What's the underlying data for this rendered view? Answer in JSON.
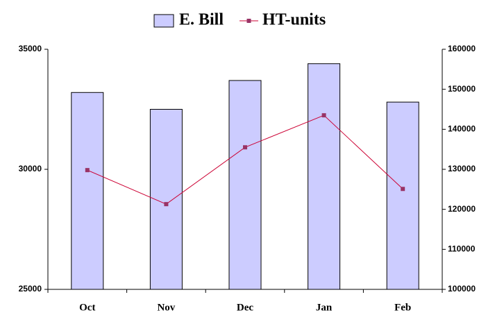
{
  "chart_data": {
    "type": "bar",
    "categories": [
      "Oct",
      "Nov",
      "Dec",
      "Jan",
      "Feb"
    ],
    "series": [
      {
        "name": "E. Bill",
        "type": "bar",
        "color": "#ccccff",
        "values": [
          33200,
          32500,
          33700,
          34400,
          32800
        ]
      },
      {
        "name": "HT-units",
        "type": "line",
        "axis": "y2",
        "color": "#cc0033",
        "marker_color": "#993366",
        "values": [
          129800,
          121300,
          135500,
          143500,
          125100
        ]
      }
    ],
    "ylim": [
      25000,
      35000
    ],
    "yticks": [
      25000,
      30000,
      35000
    ],
    "y2lim": [
      100000,
      160000
    ],
    "y2ticks": [
      100000,
      110000,
      120000,
      130000,
      140000,
      150000,
      160000
    ],
    "legend": "top",
    "grid": false
  }
}
